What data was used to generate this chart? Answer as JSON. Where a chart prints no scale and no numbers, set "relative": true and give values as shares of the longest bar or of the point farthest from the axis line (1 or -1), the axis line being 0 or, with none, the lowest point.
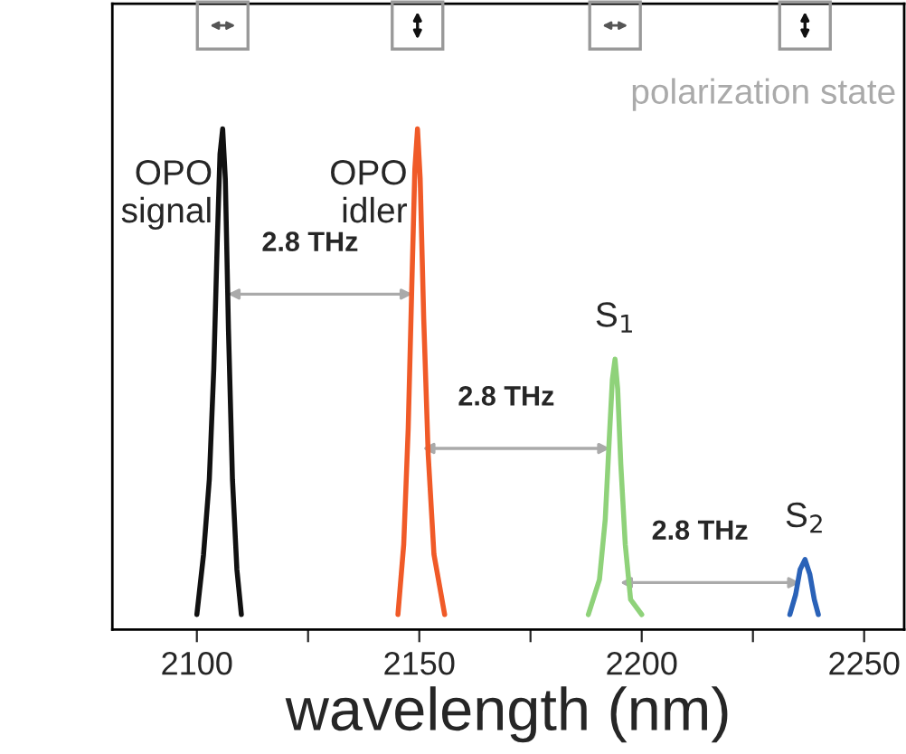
{
  "chart_data": {
    "type": "line",
    "relative": true,
    "xlabel": "wavelength (nm)",
    "xlim": [
      2081,
      2259
    ],
    "xticks": [
      2100,
      {
        "value": 2125,
        "label": null
      },
      2150,
      {
        "value": 2175,
        "label": null
      },
      2200,
      {
        "value": 2225,
        "label": null
      },
      2250
    ],
    "tick_labels": "x",
    "legend": false,
    "grid": false,
    "line_style": "solid",
    "marker": "none",
    "series": [
      {
        "name": "OPO\nsignal",
        "color": "#111111",
        "x": [
          2100,
          2101.5,
          2102.8,
          2103.8,
          2104.6,
          2105.2,
          2105.8,
          2106.4,
          2107.1,
          2108,
          2109,
          2110
        ],
        "values": [
          0.03,
          0.15,
          0.3,
          0.52,
          0.78,
          0.95,
          1,
          0.9,
          0.6,
          0.3,
          0.12,
          0.03
        ]
      },
      {
        "name": "OPO\nidler",
        "color": "#f05a28",
        "x": [
          2145.2,
          2146.5,
          2147.5,
          2148.3,
          2149,
          2149.6,
          2150.2,
          2151,
          2152,
          2153.3,
          2155.7
        ],
        "values": [
          0.03,
          0.17,
          0.4,
          0.68,
          0.92,
          1,
          0.9,
          0.62,
          0.35,
          0.15,
          0.03
        ]
      },
      {
        "name": "S$_{1}$",
        "color": "#8fd27a",
        "x": [
          2188,
          2190.5,
          2191.8,
          2192.7,
          2193.4,
          2194,
          2194.6,
          2195.3,
          2196.3,
          2197.5,
          2200
        ],
        "values": [
          0.03,
          0.1,
          0.22,
          0.38,
          0.5,
          0.54,
          0.48,
          0.33,
          0.17,
          0.06,
          0.03
        ]
      },
      {
        "name": "S$_{2}$",
        "color": "#2a62b8",
        "x": [
          2233.3,
          2234.6,
          2235.6,
          2236.7,
          2237.8,
          2238.8,
          2239.7
        ],
        "values": [
          0.03,
          0.07,
          0.12,
          0.14,
          0.11,
          0.06,
          0.03
        ]
      }
    ],
    "annotations": [
      "2.8 THz",
      "2.8 THz",
      "2.8 THz",
      "polarization state"
    ]
  }
}
